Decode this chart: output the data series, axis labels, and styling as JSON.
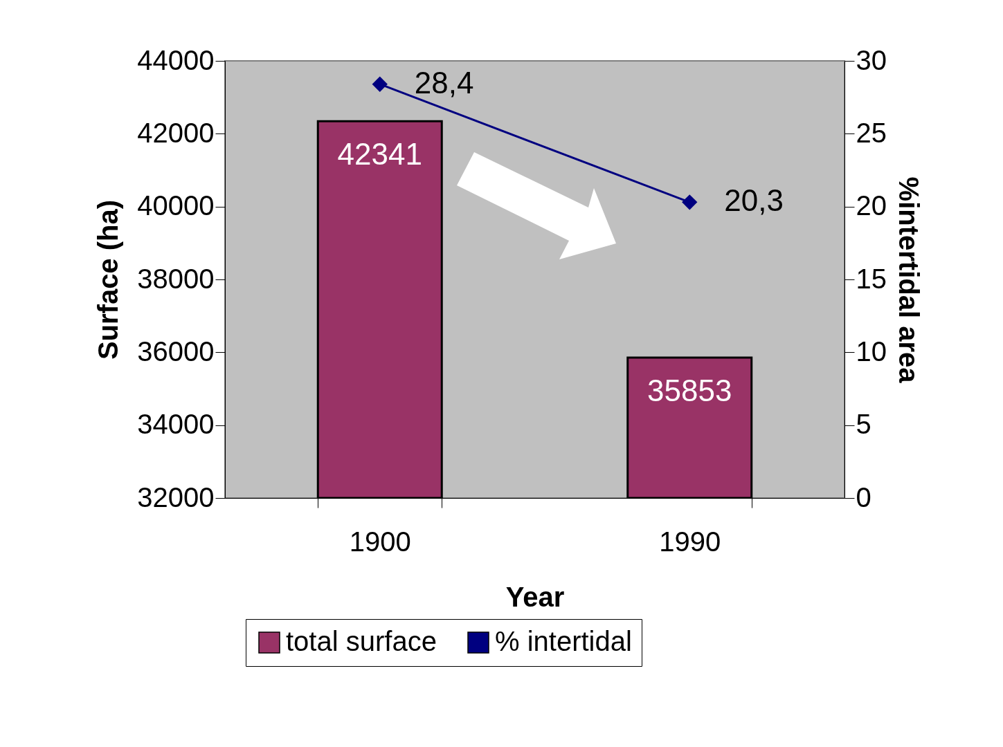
{
  "chart_data": {
    "type": "bar",
    "categories": [
      "1900",
      "1990"
    ],
    "series": [
      {
        "name": "total surface",
        "type": "bar",
        "color": "#993366",
        "values": [
          42341,
          35853
        ],
        "value_labels": [
          "42341",
          "35853"
        ]
      },
      {
        "name": "% intertidal",
        "type": "line",
        "axis": "y2",
        "color": "#000080",
        "values": [
          28.4,
          20.3
        ],
        "value_labels": [
          "28,4",
          "20,3"
        ]
      }
    ],
    "xlabel": "Year",
    "ylabel": "Surface (ha)",
    "y2label": "%intertidal area",
    "ylim": [
      32000,
      44000
    ],
    "yticks": [
      32000,
      34000,
      36000,
      38000,
      40000,
      42000,
      44000
    ],
    "y2lim": [
      0,
      30
    ],
    "y2ticks": [
      0,
      5,
      10,
      15,
      20,
      25,
      30
    ],
    "legend": "bottom",
    "grid": false,
    "marker": "diamond",
    "line_style": "solid"
  }
}
